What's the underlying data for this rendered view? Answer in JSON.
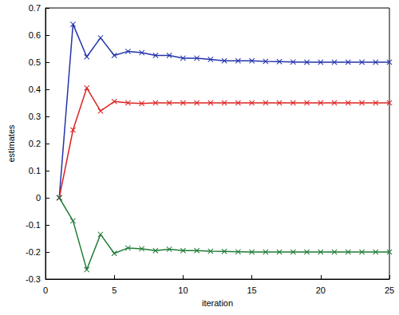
{
  "chart_data": {
    "type": "line",
    "x_label": "iteration",
    "y_label": "estimates",
    "x": [
      1,
      2,
      3,
      4,
      5,
      6,
      7,
      8,
      9,
      10,
      11,
      12,
      13,
      14,
      15,
      16,
      17,
      18,
      19,
      20,
      21,
      22,
      23,
      24,
      25
    ],
    "series": [
      {
        "color": "#2233aa",
        "values": [
          0,
          0.64,
          0.52,
          0.59,
          0.525,
          0.54,
          0.535,
          0.525,
          0.525,
          0.515,
          0.515,
          0.51,
          0.505,
          0.505,
          0.505,
          0.503,
          0.502,
          0.501,
          0.5,
          0.5,
          0.5,
          0.5,
          0.5,
          0.5,
          0.5
        ]
      },
      {
        "color": "#dd2222",
        "values": [
          0,
          0.25,
          0.405,
          0.32,
          0.355,
          0.35,
          0.348,
          0.35,
          0.35,
          0.35,
          0.35,
          0.35,
          0.35,
          0.35,
          0.35,
          0.35,
          0.35,
          0.35,
          0.35,
          0.35,
          0.35,
          0.35,
          0.35,
          0.35,
          0.35
        ]
      },
      {
        "color": "#1e7b35",
        "values": [
          0,
          -0.085,
          -0.265,
          -0.135,
          -0.205,
          -0.185,
          -0.188,
          -0.195,
          -0.19,
          -0.195,
          -0.195,
          -0.197,
          -0.198,
          -0.199,
          -0.2,
          -0.2,
          -0.2,
          -0.2,
          -0.2,
          -0.2,
          -0.2,
          -0.2,
          -0.2,
          -0.2,
          -0.2
        ]
      }
    ],
    "xlim": [
      0,
      25
    ],
    "xticks": [
      0,
      5,
      10,
      15,
      20,
      25
    ],
    "ylim": [
      -0.3,
      0.7
    ],
    "yticks": [
      -0.3,
      -0.2,
      -0.1,
      0,
      0.1,
      0.2,
      0.3,
      0.4,
      0.5,
      0.6,
      0.7
    ],
    "marker": "x",
    "grid": false
  }
}
